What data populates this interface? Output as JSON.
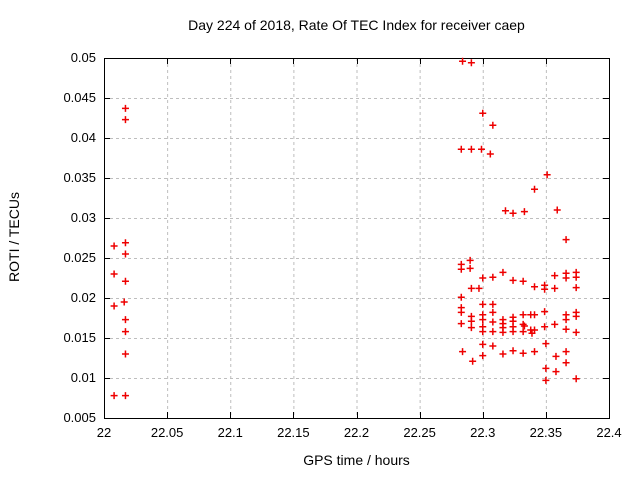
{
  "chart_data": {
    "type": "scatter",
    "title": "Day 224 of 2018, Rate Of TEC Index for receiver caep",
    "xlabel": "GPS time / hours",
    "ylabel": "ROTI / TECUs",
    "xlim": [
      22,
      22.4
    ],
    "ylim": [
      0.005,
      0.05
    ],
    "xticks": [
      22,
      22.05,
      22.1,
      22.15,
      22.2,
      22.25,
      22.3,
      22.35,
      22.4
    ],
    "xtick_labels": [
      "22",
      "22.05",
      "22.1",
      "22.15",
      "22.2",
      "22.25",
      "22.3",
      "22.35",
      "22.4"
    ],
    "yticks": [
      0.005,
      0.01,
      0.015,
      0.02,
      0.025,
      0.03,
      0.035,
      0.04,
      0.045,
      0.05
    ],
    "ytick_labels": [
      "0.005",
      "0.01",
      "0.015",
      "0.02",
      "0.025",
      "0.03",
      "0.035",
      "0.04",
      "0.045",
      "0.05"
    ],
    "grid": true,
    "legend": "none",
    "marker": "plus",
    "marker_color": "#ee0000",
    "grid_color": "#bebebe",
    "frame_color": "#000000",
    "points": [
      [
        22.008,
        0.0265
      ],
      [
        22.008,
        0.023
      ],
      [
        22.008,
        0.019
      ],
      [
        22.008,
        0.0078
      ],
      [
        22.017,
        0.0437
      ],
      [
        22.017,
        0.0423
      ],
      [
        22.017,
        0.0269
      ],
      [
        22.017,
        0.0255
      ],
      [
        22.017,
        0.0221
      ],
      [
        22.016,
        0.0195
      ],
      [
        22.017,
        0.0173
      ],
      [
        22.017,
        0.0158
      ],
      [
        22.017,
        0.013
      ],
      [
        22.017,
        0.0078
      ],
      [
        22.284,
        0.0496
      ],
      [
        22.291,
        0.0494
      ],
      [
        22.3,
        0.0431
      ],
      [
        22.308,
        0.0416
      ],
      [
        22.283,
        0.0386
      ],
      [
        22.291,
        0.0386
      ],
      [
        22.299,
        0.0386
      ],
      [
        22.306,
        0.038
      ],
      [
        22.351,
        0.0354
      ],
      [
        22.341,
        0.0336
      ],
      [
        22.318,
        0.0309
      ],
      [
        22.324,
        0.0306
      ],
      [
        22.333,
        0.0308
      ],
      [
        22.359,
        0.031
      ],
      [
        22.366,
        0.0273
      ],
      [
        22.283,
        0.0242
      ],
      [
        22.283,
        0.0236
      ],
      [
        22.283,
        0.0201
      ],
      [
        22.283,
        0.0188
      ],
      [
        22.283,
        0.0182
      ],
      [
        22.283,
        0.0168
      ],
      [
        22.284,
        0.0133
      ],
      [
        22.29,
        0.0247
      ],
      [
        22.29,
        0.0237
      ],
      [
        22.291,
        0.0212
      ],
      [
        22.291,
        0.0177
      ],
      [
        22.291,
        0.0171
      ],
      [
        22.291,
        0.0163
      ],
      [
        22.292,
        0.0121
      ],
      [
        22.297,
        0.0212
      ],
      [
        22.3,
        0.0225
      ],
      [
        22.3,
        0.0192
      ],
      [
        22.3,
        0.0179
      ],
      [
        22.3,
        0.0173
      ],
      [
        22.3,
        0.0164
      ],
      [
        22.3,
        0.0158
      ],
      [
        22.3,
        0.0142
      ],
      [
        22.3,
        0.0128
      ],
      [
        22.308,
        0.0226
      ],
      [
        22.308,
        0.0192
      ],
      [
        22.308,
        0.0182
      ],
      [
        22.308,
        0.017
      ],
      [
        22.308,
        0.0158
      ],
      [
        22.308,
        0.014
      ],
      [
        22.316,
        0.0232
      ],
      [
        22.316,
        0.0173
      ],
      [
        22.316,
        0.0168
      ],
      [
        22.316,
        0.0163
      ],
      [
        22.316,
        0.0157
      ],
      [
        22.316,
        0.013
      ],
      [
        22.324,
        0.0222
      ],
      [
        22.324,
        0.0176
      ],
      [
        22.324,
        0.0171
      ],
      [
        22.324,
        0.0164
      ],
      [
        22.324,
        0.0158
      ],
      [
        22.324,
        0.0134
      ],
      [
        22.332,
        0.0221
      ],
      [
        22.332,
        0.0179
      ],
      [
        22.332,
        0.0167
      ],
      [
        22.333,
        0.0165
      ],
      [
        22.332,
        0.0158
      ],
      [
        22.332,
        0.0131
      ],
      [
        22.338,
        0.0179
      ],
      [
        22.338,
        0.016
      ],
      [
        22.339,
        0.0156
      ],
      [
        22.341,
        0.0214
      ],
      [
        22.341,
        0.0179
      ],
      [
        22.341,
        0.016
      ],
      [
        22.341,
        0.0133
      ],
      [
        22.349,
        0.0216
      ],
      [
        22.349,
        0.0211
      ],
      [
        22.349,
        0.0183
      ],
      [
        22.349,
        0.0164
      ],
      [
        22.35,
        0.0143
      ],
      [
        22.35,
        0.0112
      ],
      [
        22.35,
        0.0097
      ],
      [
        22.357,
        0.0228
      ],
      [
        22.357,
        0.0212
      ],
      [
        22.357,
        0.0167
      ],
      [
        22.358,
        0.0127
      ],
      [
        22.358,
        0.0108
      ],
      [
        22.366,
        0.0231
      ],
      [
        22.366,
        0.0225
      ],
      [
        22.366,
        0.0179
      ],
      [
        22.366,
        0.0173
      ],
      [
        22.366,
        0.0161
      ],
      [
        22.366,
        0.0133
      ],
      [
        22.366,
        0.0119
      ],
      [
        22.374,
        0.0232
      ],
      [
        22.374,
        0.0226
      ],
      [
        22.374,
        0.0213
      ],
      [
        22.374,
        0.0182
      ],
      [
        22.374,
        0.0177
      ],
      [
        22.374,
        0.0157
      ],
      [
        22.374,
        0.0099
      ]
    ]
  }
}
